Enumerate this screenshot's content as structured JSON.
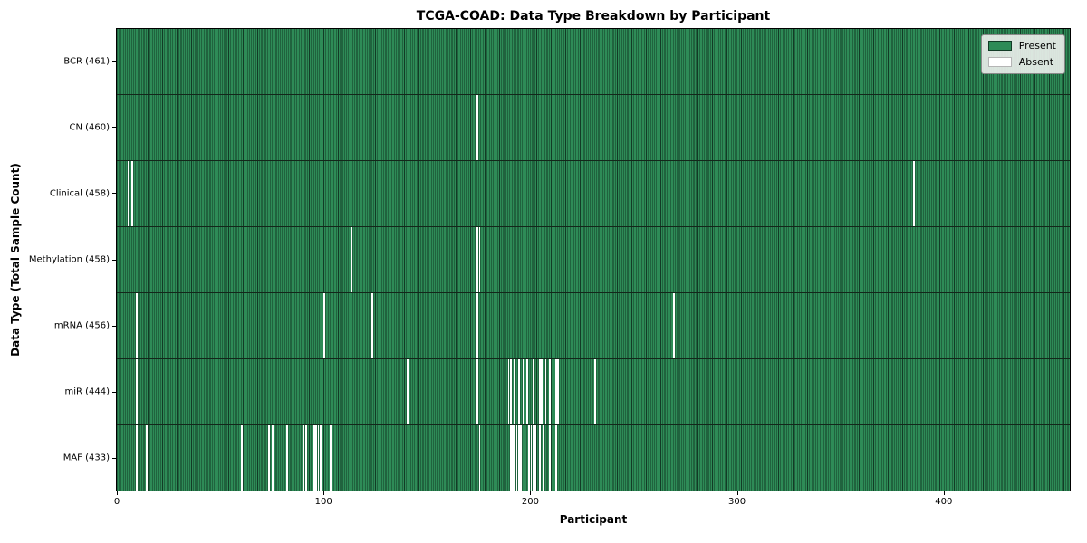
{
  "chart_data": {
    "type": "heatmap",
    "title": "TCGA-COAD: Data Type Breakdown by Participant",
    "xlabel": "Participant",
    "ylabel": "Data Type (Total Sample Count)",
    "n_participants": 461,
    "xlim": [
      0,
      461
    ],
    "x_ticks": [
      0,
      100,
      200,
      300,
      400
    ],
    "grid": false,
    "legend_position": "upper-right",
    "legend": [
      {
        "label": "Present",
        "color": "#2e8b57"
      },
      {
        "label": "Absent",
        "color": "#ffffff"
      }
    ],
    "colors": {
      "bar_fill": "#2e8b57",
      "bar_edge": "#123b26",
      "absent": "#ffffff",
      "row_separator": "#13271a",
      "legend_bg": "#e9eee9"
    },
    "rows": [
      {
        "name": "BCR",
        "label": "BCR (461)",
        "present_count": 461,
        "absent_participants": []
      },
      {
        "name": "CN",
        "label": "CN (460)",
        "present_count": 460,
        "absent_participants": [
          174
        ]
      },
      {
        "name": "Clinical",
        "label": "Clinical (458)",
        "present_count": 458,
        "absent_participants": [
          5,
          7,
          385
        ]
      },
      {
        "name": "Methylation",
        "label": "Methylation (458)",
        "present_count": 458,
        "absent_participants": [
          113,
          174,
          175
        ]
      },
      {
        "name": "mRNA",
        "label": "mRNA (456)",
        "present_count": 456,
        "absent_participants": [
          9,
          100,
          123,
          174,
          269
        ]
      },
      {
        "name": "miR",
        "label": "miR (444)",
        "present_count": 444,
        "absent_participants": [
          9,
          140,
          174,
          189,
          190,
          192,
          194,
          196,
          198,
          201,
          204,
          205,
          207,
          209,
          212,
          213,
          231
        ]
      },
      {
        "name": "MAF",
        "label": "MAF (433)",
        "present_count": 433,
        "absent_participants": [
          9,
          14,
          60,
          73,
          75,
          82,
          90,
          91,
          95,
          96,
          97,
          98,
          103,
          175,
          190,
          191,
          192,
          193,
          194,
          195,
          199,
          200,
          201,
          202,
          204,
          206,
          209,
          212
        ]
      }
    ]
  }
}
